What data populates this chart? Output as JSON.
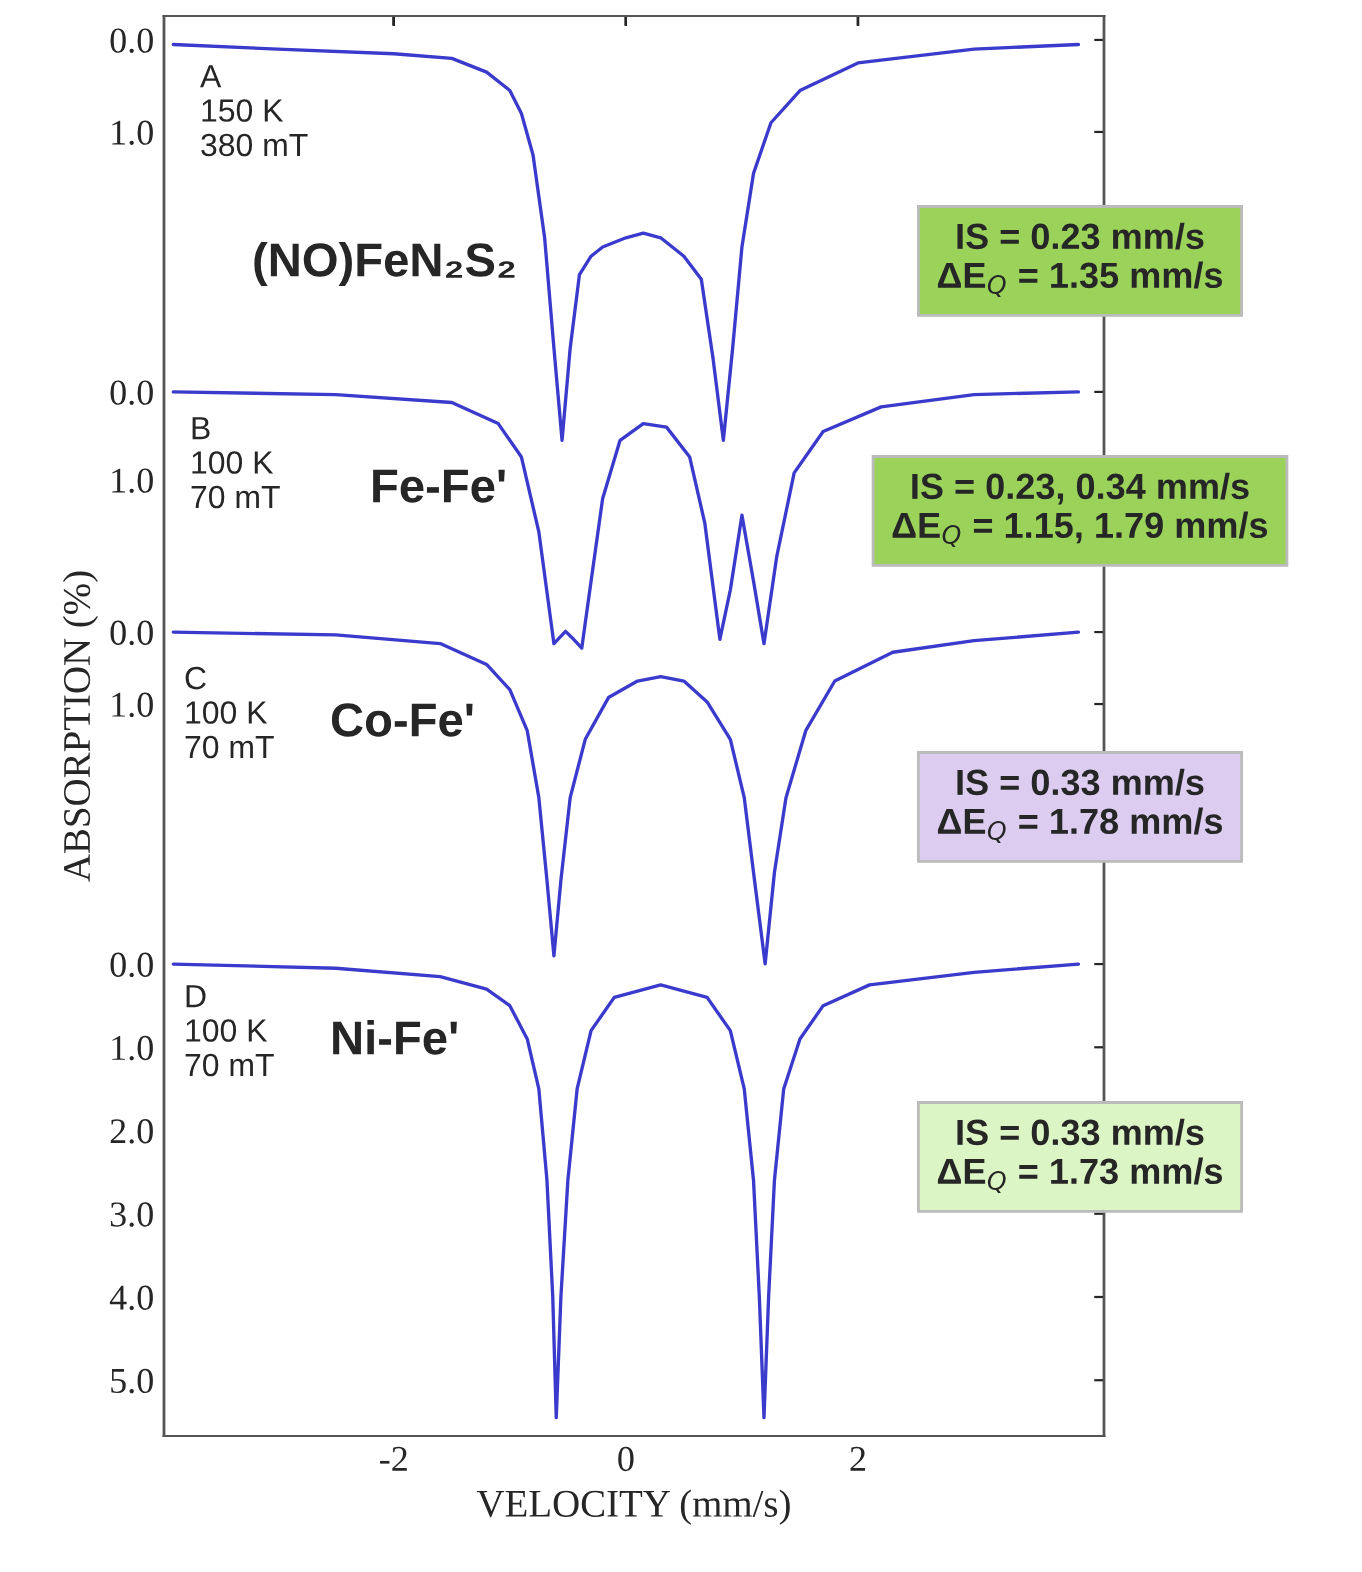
{
  "chart_data": [
    {
      "type": "line",
      "xlim": [
        -3.98,
        4.12
      ],
      "xticks": [
        -2,
        0,
        2
      ],
      "ylim": [
        15.17,
        -0.26
      ],
      "yticks": [
        {
          "value": 0,
          "label": "0.0"
        },
        {
          "value": 1,
          "label": "1.0"
        }
      ],
      "tick_labels": "y",
      "grid": false,
      "series": [
        {
          "color": "#3a3acc",
          "x": [
            -3.9,
            -3,
            -2,
            -1.5,
            -1.2,
            -1.0,
            -0.9,
            -0.8,
            -0.7,
            -0.62,
            -0.55,
            -0.48,
            -0.4,
            -0.3,
            -0.2,
            0,
            0.15,
            0.3,
            0.5,
            0.65,
            0.75,
            0.84,
            0.92,
            1.0,
            1.1,
            1.25,
            1.5,
            2,
            3,
            3.9
          ],
          "values": [
            0.05,
            0.1,
            0.15,
            0.2,
            0.35,
            0.55,
            0.8,
            1.25,
            2.15,
            3.35,
            4.35,
            3.35,
            2.55,
            2.35,
            2.25,
            2.15,
            2.1,
            2.15,
            2.35,
            2.6,
            3.45,
            4.35,
            3.35,
            2.25,
            1.45,
            0.9,
            0.55,
            0.25,
            0.1,
            0.05
          ]
        }
      ],
      "annotations": [
        "A\n150 K\n380 mT",
        "(NO)FeN₂S₂",
        "IS = 0.23 mm/s\nΔE$_{Q}$ = 1.35 mm/s"
      ]
    },
    {
      "type": "line",
      "xlim": [
        -3.98,
        4.12
      ],
      "xticks": [
        -2,
        0,
        2
      ],
      "ylim": [
        11.86,
        -4.27
      ],
      "yticks": [
        {
          "value": 0,
          "label": "0.0"
        },
        {
          "value": 1,
          "label": "1.0"
        }
      ],
      "tick_labels": "y",
      "grid": false,
      "series": [
        {
          "color": "#3a3acc",
          "x": [
            -3.9,
            -2.5,
            -1.5,
            -1.1,
            -0.9,
            -0.75,
            -0.62,
            -0.52,
            -0.45,
            -0.38,
            -0.3,
            -0.2,
            -0.05,
            0.15,
            0.35,
            0.55,
            0.68,
            0.81,
            0.9,
            1.0,
            1.1,
            1.19,
            1.3,
            1.45,
            1.7,
            2.2,
            3,
            3.9
          ],
          "values": [
            0,
            0.03,
            0.12,
            0.36,
            0.74,
            1.59,
            2.86,
            2.72,
            2.81,
            2.91,
            2.15,
            1.21,
            0.55,
            0.36,
            0.4,
            0.74,
            1.49,
            2.81,
            2.25,
            1.4,
            2.15,
            2.86,
            1.87,
            0.92,
            0.45,
            0.17,
            0.03,
            0
          ]
        }
      ],
      "annotations": [
        "B\n100 K\n70 mT",
        "Fe-Fe'",
        "IS = 0.23, 0.34 mm/s\nΔE$_{Q}$ = 1.15, 1.79 mm/s"
      ]
    },
    {
      "type": "line",
      "xlim": [
        -3.98,
        4.12
      ],
      "xticks": [
        -2,
        0,
        2
      ],
      "ylim": [
        11.17,
        -8.56
      ],
      "yticks": [
        {
          "value": 0,
          "label": "0.0"
        },
        {
          "value": 1,
          "label": "1.0"
        }
      ],
      "tick_labels": "y",
      "grid": false,
      "series": [
        {
          "color": "#3a3acc",
          "x": [
            -3.9,
            -2.5,
            -1.6,
            -1.2,
            -1.0,
            -0.85,
            -0.75,
            -0.68,
            -0.62,
            -0.56,
            -0.48,
            -0.35,
            -0.15,
            0.1,
            0.3,
            0.5,
            0.7,
            0.9,
            1.02,
            1.1,
            1.2,
            1.28,
            1.38,
            1.55,
            1.8,
            2.3,
            3,
            3.9
          ],
          "values": [
            0,
            0.04,
            0.16,
            0.45,
            0.8,
            1.37,
            2.3,
            3.45,
            4.5,
            3.45,
            2.3,
            1.49,
            0.91,
            0.68,
            0.62,
            0.68,
            0.97,
            1.49,
            2.3,
            3.34,
            4.61,
            3.34,
            2.3,
            1.37,
            0.68,
            0.28,
            0.12,
            0
          ]
        }
      ],
      "annotations": [
        "C\n100 K\n70 mT",
        "Co-Fe'",
        "IS = 0.33 mm/s\nΔE$_{Q}$ = 1.78 mm/s"
      ]
    },
    {
      "type": "line",
      "xlabel": "VELOCITY (mm/s)",
      "ylabel": "ABSORPTION (%)",
      "xlim": [
        -3.98,
        4.12
      ],
      "xticks": [
        -2,
        0,
        2
      ],
      "ylim": [
        5.67,
        -11.39
      ],
      "yticks": [
        {
          "value": 0,
          "label": "0.0"
        },
        {
          "value": 1,
          "label": "1.0"
        },
        {
          "value": 2,
          "label": "2.0"
        },
        {
          "value": 3,
          "label": "3.0"
        },
        {
          "value": 4,
          "label": "4.0"
        },
        {
          "value": 5,
          "label": "5.0"
        }
      ],
      "grid": false,
      "series": [
        {
          "color": "#3a3acc",
          "x": [
            -3.9,
            -2.5,
            -1.6,
            -1.2,
            -1.0,
            -0.85,
            -0.75,
            -0.68,
            -0.63,
            -0.6,
            -0.56,
            -0.5,
            -0.42,
            -0.3,
            -0.1,
            0.3,
            0.7,
            0.9,
            1.02,
            1.1,
            1.15,
            1.19,
            1.23,
            1.28,
            1.36,
            1.5,
            1.7,
            2.1,
            3,
            3.9
          ],
          "values": [
            0,
            0.05,
            0.15,
            0.3,
            0.5,
            0.9,
            1.5,
            2.6,
            4.0,
            5.45,
            4.0,
            2.6,
            1.5,
            0.8,
            0.4,
            0.25,
            0.4,
            0.8,
            1.5,
            2.6,
            4.0,
            5.45,
            4.0,
            2.6,
            1.5,
            0.9,
            0.5,
            0.25,
            0.1,
            0
          ]
        }
      ],
      "annotations": [
        "D\n100 K\n70 mT",
        "Ni-Fe'",
        "IS = 0.33 mm/s\nΔE$_{Q}$ = 1.73 mm/s"
      ]
    }
  ]
}
